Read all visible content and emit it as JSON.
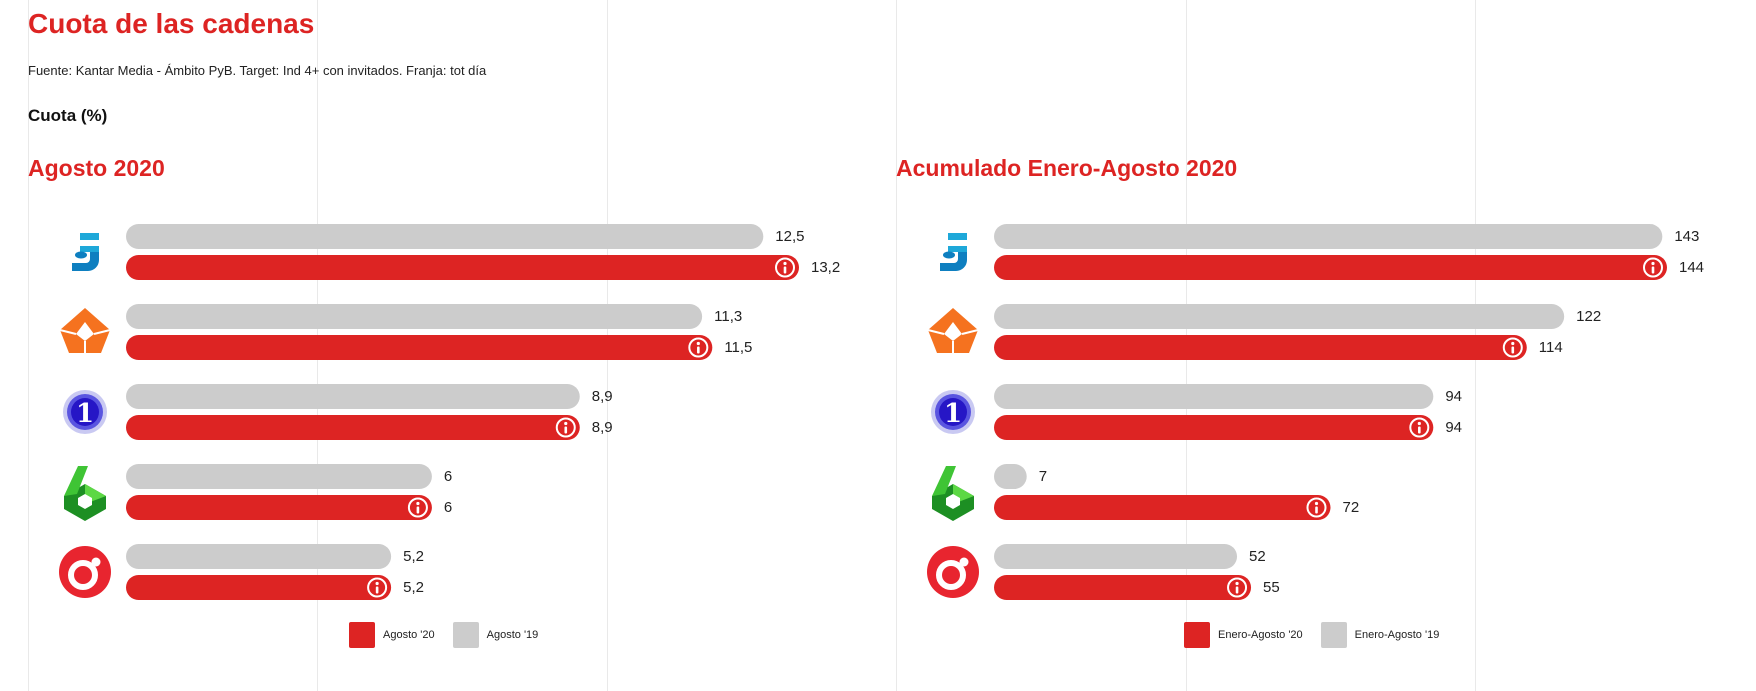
{
  "title": "Cuota de las cadenas",
  "source": "Fuente: Kantar Media - Ámbito PyB. Target: Ind 4+ con invitados. Franja: tot día",
  "metric_label": "Cuota (%)",
  "colors": {
    "current": "#dd2423",
    "previous": "#cccccc",
    "accent": "#dd2423"
  },
  "channels": [
    {
      "name": "Telecinco",
      "icon": "telecinco-logo-icon"
    },
    {
      "name": "Antena 3",
      "icon": "antena3-logo-icon"
    },
    {
      "name": "La 1",
      "icon": "la1-logo-icon"
    },
    {
      "name": "laSexta",
      "icon": "lasexta-logo-icon"
    },
    {
      "name": "Cuatro",
      "icon": "cuatro-logo-icon"
    }
  ],
  "chart_data": [
    {
      "type": "bar",
      "orientation": "horizontal",
      "title": "Agosto 2020",
      "categories": [
        "Telecinco",
        "Antena 3",
        "La 1",
        "laSexta",
        "Cuatro"
      ],
      "series": [
        {
          "name": "Agosto '19",
          "color": "#cccccc",
          "values": [
            12.5,
            11.3,
            8.9,
            6,
            5.2
          ],
          "labels": [
            "12,5",
            "11,3",
            "8,9",
            "6",
            "5,2"
          ]
        },
        {
          "name": "Agosto '20",
          "color": "#dd2423",
          "values": [
            13.2,
            11.5,
            8.9,
            6,
            5.2
          ],
          "labels": [
            "13,2",
            "11,5",
            "8,9",
            "6",
            "5,2"
          ]
        }
      ],
      "xlim": [
        0,
        13.2
      ],
      "legend": [
        "Agosto '20",
        "Agosto '19"
      ]
    },
    {
      "type": "bar",
      "orientation": "horizontal",
      "title": "Acumulado Enero-Agosto 2020",
      "categories": [
        "Telecinco",
        "Antena 3",
        "La 1",
        "laSexta",
        "Cuatro"
      ],
      "series": [
        {
          "name": "Enero-Agosto '19",
          "color": "#cccccc",
          "values": [
            143,
            122,
            94,
            7,
            52
          ],
          "labels": [
            "143",
            "122",
            "94",
            "7",
            "52"
          ]
        },
        {
          "name": "Enero-Agosto '20",
          "color": "#dd2423",
          "values": [
            144,
            114,
            94,
            72,
            55
          ],
          "labels": [
            "144",
            "114",
            "94",
            "72",
            "55"
          ]
        }
      ],
      "xlim": [
        0,
        144
      ],
      "legend": [
        "Enero-Agosto '20",
        "Enero-Agosto '19"
      ]
    }
  ]
}
